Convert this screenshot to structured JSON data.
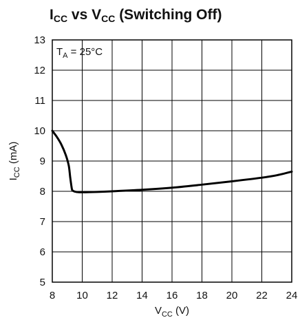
{
  "chart_data": {
    "type": "line",
    "title": {
      "main_a": "I",
      "main_a_sub": "CC",
      "main_b": " vs V",
      "main_b_sub": "CC",
      "main_c": " (Switching Off)"
    },
    "xlabel": {
      "base": "V",
      "sub": "CC",
      "unit": " (V)"
    },
    "ylabel": {
      "base": "I",
      "sub": "CC",
      "unit": " (mA)"
    },
    "annotation": {
      "base": "T",
      "sub": "A",
      "text": " = 25°C"
    },
    "xlim": [
      8,
      24
    ],
    "ylim": [
      5,
      13
    ],
    "xticks": [
      "8",
      "10",
      "12",
      "14",
      "16",
      "18",
      "20",
      "22",
      "24"
    ],
    "yticks": [
      "5",
      "6",
      "7",
      "8",
      "9",
      "10",
      "11",
      "12",
      "13"
    ],
    "grid": true,
    "x": [
      8.0,
      8.3,
      8.6,
      8.9,
      9.1,
      9.2,
      9.3,
      9.35,
      9.5,
      9.8,
      10.2,
      11,
      12,
      14,
      16,
      18,
      20,
      22,
      23,
      24
    ],
    "y": [
      10.0,
      9.8,
      9.55,
      9.2,
      8.85,
      8.45,
      8.1,
      8.03,
      7.99,
      7.97,
      7.97,
      7.98,
      8.0,
      8.05,
      8.12,
      8.22,
      8.33,
      8.45,
      8.53,
      8.65
    ]
  }
}
